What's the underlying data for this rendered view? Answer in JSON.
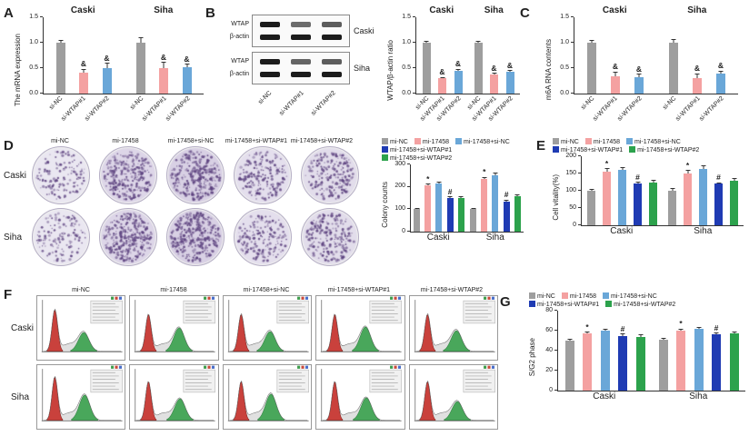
{
  "panel_labels": {
    "A": "A",
    "B": "B",
    "C": "C",
    "D": "D",
    "E": "E",
    "F": "F",
    "G": "G"
  },
  "cell_lines": [
    "Caski",
    "Siha"
  ],
  "treatments": [
    "mi-NC",
    "mi-17458",
    "mi-17458+si-NC",
    "mi-17458+si-WTAP#1",
    "mi-17458+si-WTAP#2"
  ],
  "colors": {
    "gray": "#9e9e9e",
    "pink": "#f4a1a1",
    "blue": "#6aa7d8",
    "darkblue": "#1f3bb3",
    "green": "#2ca24c"
  },
  "panelB": {
    "blot_labels": [
      "WTAP",
      "β-actin"
    ],
    "blot_groups": [
      "Caski",
      "Siha"
    ],
    "lane_labels": [
      "si-NC",
      "si-WTAP#1",
      "si-WTAP#2"
    ],
    "wtap_intensity": [
      [
        1,
        0.45,
        0.55
      ],
      [
        1,
        0.5,
        0.55
      ]
    ],
    "actin_intensity": [
      [
        1,
        1,
        1
      ],
      [
        1,
        1,
        1
      ]
    ]
  },
  "chart_data": [
    {
      "id": "A",
      "type": "bar",
      "ylabel": "The mRNA expression",
      "ylim": [
        0,
        1.5
      ],
      "yticks": [
        "0.0",
        "0.5",
        "1.0",
        "1.5"
      ],
      "groups": [
        "Caski",
        "Siha"
      ],
      "categories": [
        "si-NC",
        "si-WTAP#1",
        "si-WTAP#2"
      ],
      "colors": [
        "#9e9e9e",
        "#f4a1a1",
        "#6aa7d8"
      ],
      "values": [
        [
          1.0,
          0.42,
          0.5
        ],
        [
          1.0,
          0.5,
          0.52
        ]
      ],
      "errors": [
        [
          0.05,
          0.07,
          0.1
        ],
        [
          0.1,
          0.12,
          0.07
        ]
      ],
      "sigs": [
        [
          "",
          "&",
          "&"
        ],
        [
          "",
          "&",
          "&"
        ]
      ],
      "group_titles_top": true,
      "cat_labels": true,
      "legend": false
    },
    {
      "id": "B",
      "type": "bar",
      "ylabel": "WTAP/β-actin ratio",
      "ylim": [
        0,
        1.5
      ],
      "yticks": [
        "0.0",
        "0.5",
        "1.0",
        "1.5"
      ],
      "groups": [
        "Caski",
        "Siha"
      ],
      "categories": [
        "si-NC",
        "si-WTAP#1",
        "si-WTAP#2"
      ],
      "colors": [
        "#9e9e9e",
        "#f4a1a1",
        "#6aa7d8"
      ],
      "values": [
        [
          1.0,
          0.3,
          0.45
        ],
        [
          1.0,
          0.38,
          0.43
        ]
      ],
      "errors": [
        [
          0.04,
          0.03,
          0.04
        ],
        [
          0.04,
          0.03,
          0.03
        ]
      ],
      "sigs": [
        [
          "",
          "&",
          "&"
        ],
        [
          "",
          "&",
          "&"
        ]
      ],
      "group_titles_top": true,
      "cat_labels": true,
      "legend": false
    },
    {
      "id": "C",
      "type": "bar",
      "ylabel": "m6A RNA contents",
      "ylim": [
        0,
        1.5
      ],
      "yticks": [
        "0.0",
        "0.5",
        "1.0",
        "1.5"
      ],
      "groups": [
        "Caski",
        "Siha"
      ],
      "categories": [
        "si-NC",
        "si-WTAP#1",
        "si-WTAP#2"
      ],
      "colors": [
        "#9e9e9e",
        "#f4a1a1",
        "#6aa7d8"
      ],
      "values": [
        [
          1.0,
          0.34,
          0.33
        ],
        [
          1.0,
          0.3,
          0.4
        ]
      ],
      "errors": [
        [
          0.05,
          0.09,
          0.06
        ],
        [
          0.07,
          0.1,
          0.05
        ]
      ],
      "sigs": [
        [
          "",
          "&",
          "&"
        ],
        [
          "",
          "&",
          "&"
        ]
      ],
      "group_titles_top": true,
      "cat_labels": true,
      "legend": false
    },
    {
      "id": "D",
      "type": "bar",
      "ylabel": "Colony counts",
      "ylim": [
        0,
        300
      ],
      "yticks": [
        "0",
        "100",
        "200",
        "300"
      ],
      "groups": [
        "Caski",
        "Siha"
      ],
      "categories": [
        "mi-NC",
        "mi-17458",
        "mi-17458+si-NC",
        "mi-17458+si-WTAP#1",
        "mi-17458+si-WTAP#2"
      ],
      "colors": [
        "#9e9e9e",
        "#f4a1a1",
        "#6aa7d8",
        "#1f3bb3",
        "#2ca24c"
      ],
      "values": [
        [
          100,
          205,
          215,
          150,
          152
        ],
        [
          100,
          235,
          250,
          135,
          160
        ]
      ],
      "errors": [
        [
          6,
          10,
          10,
          8,
          8
        ],
        [
          6,
          10,
          12,
          8,
          8
        ]
      ],
      "sigs": [
        [
          "",
          "*",
          "",
          "#",
          ""
        ],
        [
          "",
          "*",
          "",
          "#",
          ""
        ]
      ],
      "group_titles_top": false,
      "cat_labels": false,
      "legend": true
    },
    {
      "id": "E",
      "type": "bar",
      "ylabel": "Cell vitality(%)",
      "ylim": [
        0,
        200
      ],
      "yticks": [
        "0",
        "50",
        "100",
        "150",
        "200"
      ],
      "groups": [
        "Caski",
        "Siha"
      ],
      "categories": [
        "mi-NC",
        "mi-17458",
        "mi-17458+si-NC",
        "mi-17458+si-WTAP#1",
        "mi-17458+si-WTAP#2"
      ],
      "colors": [
        "#9e9e9e",
        "#f4a1a1",
        "#6aa7d8",
        "#1f3bb3",
        "#2ca24c"
      ],
      "values": [
        [
          100,
          155,
          160,
          120,
          125
        ],
        [
          100,
          150,
          162,
          120,
          130
        ]
      ],
      "errors": [
        [
          5,
          10,
          8,
          6,
          6
        ],
        [
          8,
          10,
          12,
          5,
          6
        ]
      ],
      "sigs": [
        [
          "",
          "*",
          "",
          "#",
          ""
        ],
        [
          "",
          "*",
          "",
          "#",
          ""
        ]
      ],
      "group_titles_top": false,
      "cat_labels": false,
      "legend": true
    },
    {
      "id": "G",
      "type": "bar",
      "ylabel": "S/G2 phase",
      "ylim": [
        0,
        80
      ],
      "yticks": [
        "0",
        "20",
        "40",
        "60",
        "80"
      ],
      "groups": [
        "Caski",
        "Siha"
      ],
      "categories": [
        "mi-NC",
        "mi-17458",
        "mi-17458+si-NC",
        "mi-17458+si-WTAP#1",
        "mi-17458+si-WTAP#2"
      ],
      "colors": [
        "#9e9e9e",
        "#f4a1a1",
        "#6aa7d8",
        "#1f3bb3",
        "#2ca24c"
      ],
      "values": [
        [
          50,
          57,
          60,
          55,
          54
        ],
        [
          51,
          60,
          62,
          56,
          57
        ]
      ],
      "errors": [
        [
          2,
          2,
          2,
          2,
          2
        ],
        [
          2,
          2,
          2,
          2,
          2
        ]
      ],
      "sigs": [
        [
          "",
          "*",
          "",
          "#",
          ""
        ],
        [
          "",
          "*",
          "",
          "#",
          ""
        ]
      ],
      "group_titles_top": false,
      "cat_labels": false,
      "legend": true
    }
  ]
}
